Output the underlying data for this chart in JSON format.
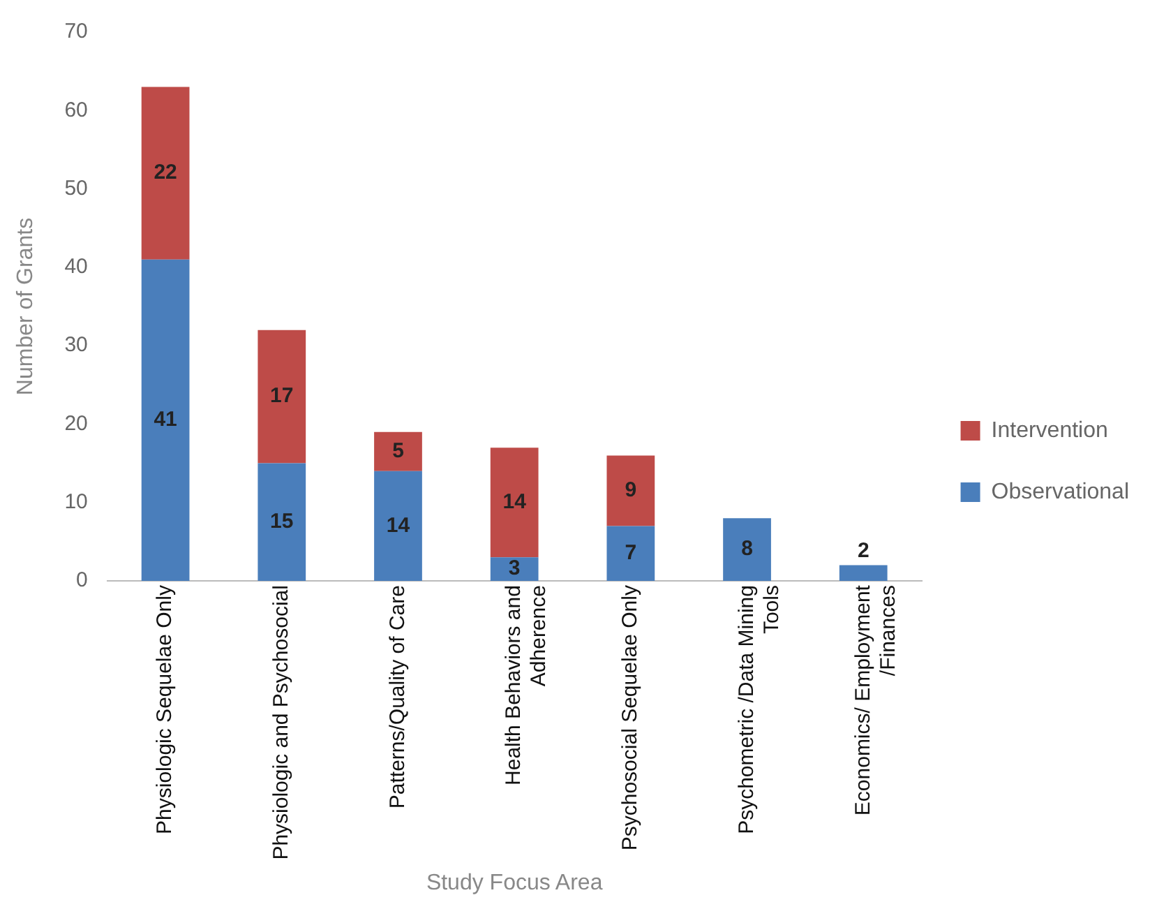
{
  "chart_data": {
    "type": "bar",
    "stacked": true,
    "xlabel": "Study Focus Area",
    "ylabel": "Number of Grants",
    "categories": [
      "Physiologic Sequelae Only",
      "Physiologic and Psychosocial",
      "Patterns/Quality of Care",
      "Health Behaviors and Adherence",
      "Psychosocial Sequelae Only",
      "Psychometric /Data Mining Tools",
      "Economics/ Employment /Finances"
    ],
    "series": [
      {
        "name": "Observational",
        "color": "#4a7ebb",
        "values": [
          41,
          15,
          14,
          3,
          7,
          8,
          2
        ]
      },
      {
        "name": "Intervention",
        "color": "#be4b48",
        "values": [
          22,
          17,
          5,
          14,
          9,
          null,
          null
        ]
      }
    ],
    "ylim": [
      0,
      70
    ],
    "yticks": [
      0,
      10,
      20,
      30,
      40,
      50,
      60,
      70
    ],
    "grid": false,
    "legend": "right",
    "data_labels": true
  }
}
